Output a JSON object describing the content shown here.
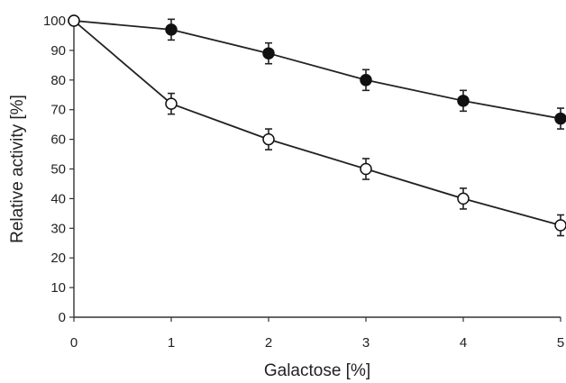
{
  "chart_data": {
    "type": "line",
    "title": "",
    "xlabel": "Galactose [%]",
    "ylabel": "Relative activity [%]",
    "xlim": [
      0,
      5
    ],
    "ylim": [
      0,
      100
    ],
    "x_ticks": [
      "0",
      "1",
      "2",
      "3",
      "4",
      "5"
    ],
    "y_ticks": [
      "0",
      "10",
      "20",
      "30",
      "40",
      "50",
      "60",
      "70",
      "80",
      "90",
      "100"
    ],
    "grid": false,
    "legend": "none",
    "x": [
      0,
      1,
      2,
      3,
      4,
      5
    ],
    "series": [
      {
        "marker": "filled-circle",
        "color": "#111111",
        "values": [
          100,
          97,
          89,
          80,
          73,
          67
        ],
        "error": [
          0,
          3.5,
          3.5,
          3.5,
          3.5,
          3.5
        ]
      },
      {
        "marker": "open-circle",
        "color": "#111111",
        "values": [
          100,
          72,
          60,
          50,
          40,
          31
        ],
        "error": [
          0,
          3.5,
          3.5,
          3.5,
          3.5,
          3.5
        ]
      }
    ]
  }
}
